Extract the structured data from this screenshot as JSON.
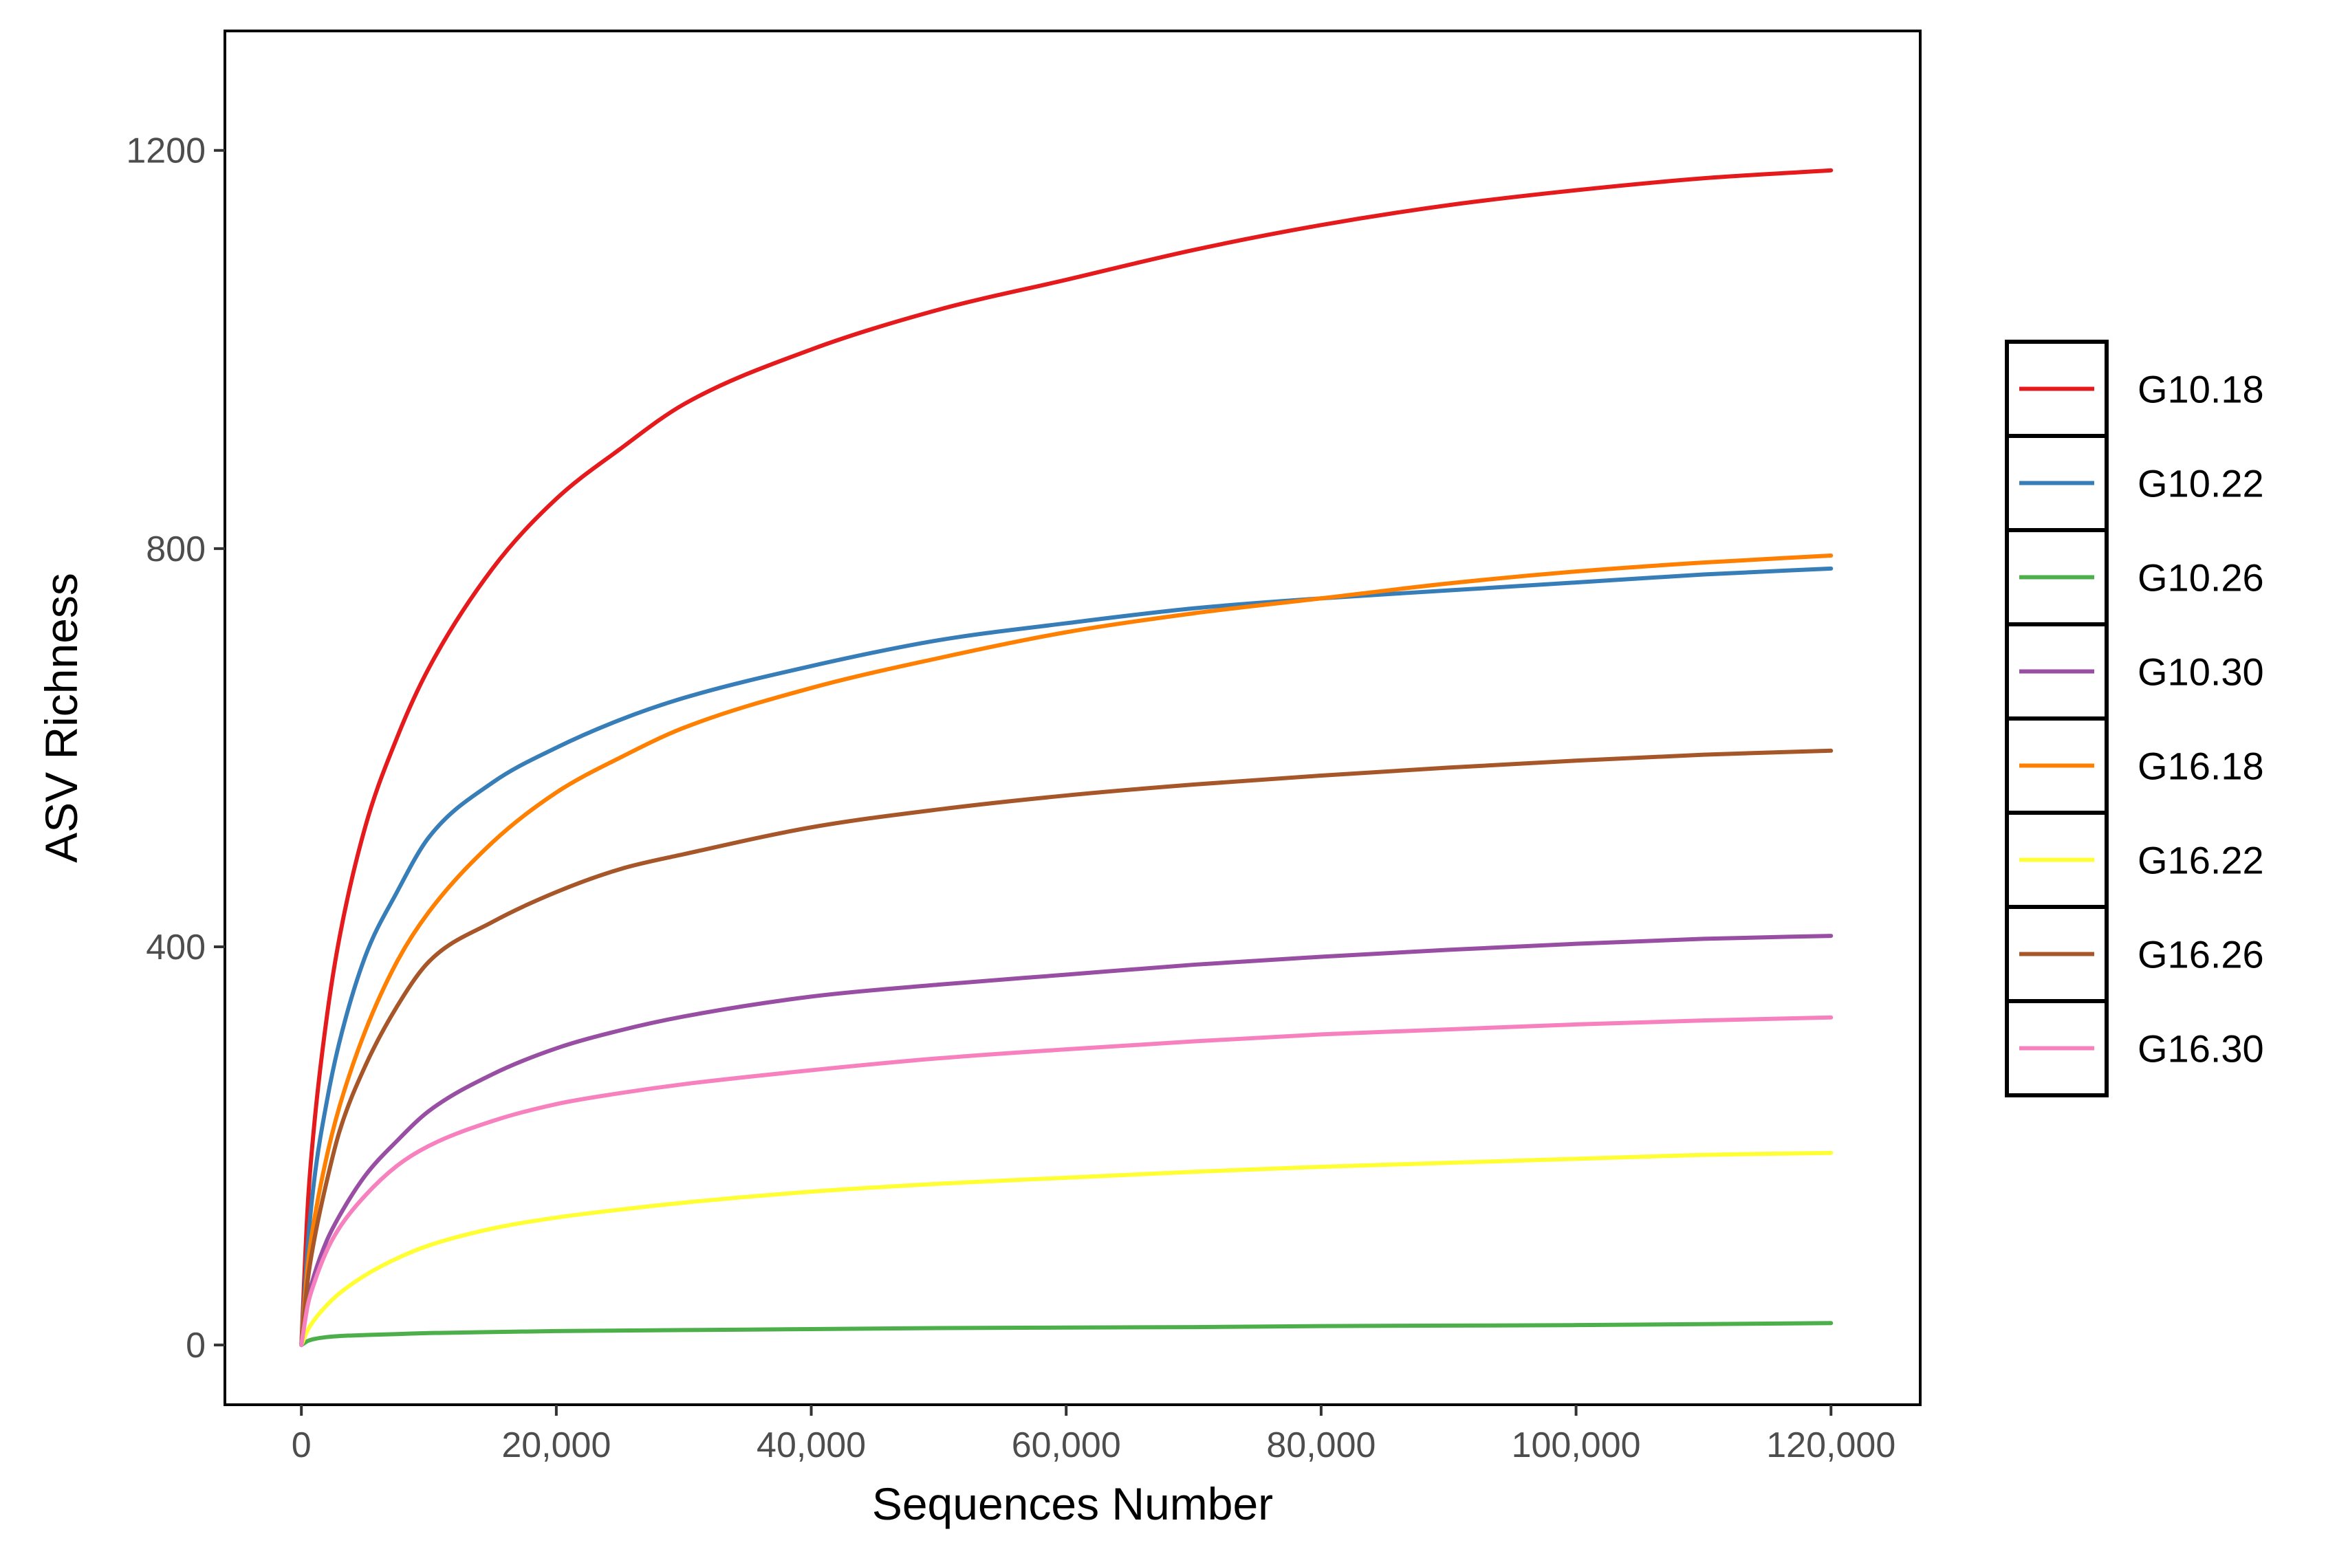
{
  "chart_data": {
    "type": "line",
    "title": "",
    "xlabel": "Sequences Number",
    "ylabel": "ASV Richness",
    "xlim": [
      -6000,
      127000
    ],
    "ylim": [
      -60,
      1320
    ],
    "x_ticks": [
      0,
      20000,
      40000,
      60000,
      80000,
      100000,
      120000
    ],
    "x_tick_labels": [
      "0",
      "20,000",
      "40,000",
      "60,000",
      "80,000",
      "100,000",
      "120,000"
    ],
    "y_ticks": [
      0,
      400,
      800,
      1200
    ],
    "y_tick_labels": [
      "0",
      "400",
      "800",
      "1200"
    ],
    "grid": false,
    "legend_position": "right",
    "x": [
      0,
      500,
      1000,
      2000,
      3000,
      5000,
      7500,
      10000,
      15000,
      20000,
      25000,
      30000,
      40000,
      50000,
      60000,
      70000,
      80000,
      90000,
      100000,
      110000,
      120000
    ],
    "series": [
      {
        "name": "G10.18",
        "color": "#e41a1c",
        "values": [
          0,
          140,
          220,
          330,
          410,
          520,
          610,
          680,
          780,
          850,
          900,
          945,
          1000,
          1040,
          1070,
          1100,
          1125,
          1145,
          1160,
          1172,
          1180
        ]
      },
      {
        "name": "G10.22",
        "color": "#377eb8",
        "values": [
          0,
          100,
          165,
          245,
          305,
          390,
          455,
          510,
          565,
          600,
          628,
          650,
          682,
          708,
          725,
          740,
          750,
          758,
          766,
          774,
          780
        ]
      },
      {
        "name": "G10.26",
        "color": "#4daf4a",
        "values": [
          0,
          4,
          6,
          8,
          9,
          10,
          11,
          12,
          13,
          14,
          14.5,
          15,
          16,
          17,
          17.5,
          18,
          19,
          19.5,
          20,
          21,
          22
        ]
      },
      {
        "name": "G10.30",
        "color": "#984ea3",
        "values": [
          0,
          45,
          70,
          105,
          130,
          170,
          205,
          235,
          272,
          298,
          316,
          330,
          350,
          362,
          372,
          382,
          390,
          397,
          403,
          408,
          411
        ]
      },
      {
        "name": "G16.18",
        "color": "#ff7f00",
        "values": [
          0,
          80,
          125,
          190,
          240,
          315,
          385,
          435,
          505,
          555,
          590,
          620,
          660,
          690,
          716,
          735,
          750,
          765,
          777,
          786,
          793
        ]
      },
      {
        "name": "G16.22",
        "color": "#ffff33",
        "values": [
          0,
          15,
          25,
          40,
          52,
          70,
          87,
          100,
          117,
          128,
          136,
          143,
          154,
          162,
          168,
          174,
          179,
          183,
          187,
          191,
          193
        ]
      },
      {
        "name": "G16.26",
        "color": "#a65628",
        "values": [
          0,
          65,
          105,
          165,
          215,
          280,
          340,
          385,
          425,
          455,
          478,
          493,
          520,
          538,
          552,
          563,
          572,
          580,
          587,
          593,
          597
        ]
      },
      {
        "name": "G16.30",
        "color": "#f781bf",
        "values": [
          0,
          40,
          62,
          95,
          118,
          150,
          180,
          200,
          225,
          242,
          253,
          262,
          276,
          288,
          297,
          305,
          312,
          317,
          322,
          326,
          329
        ]
      }
    ]
  }
}
